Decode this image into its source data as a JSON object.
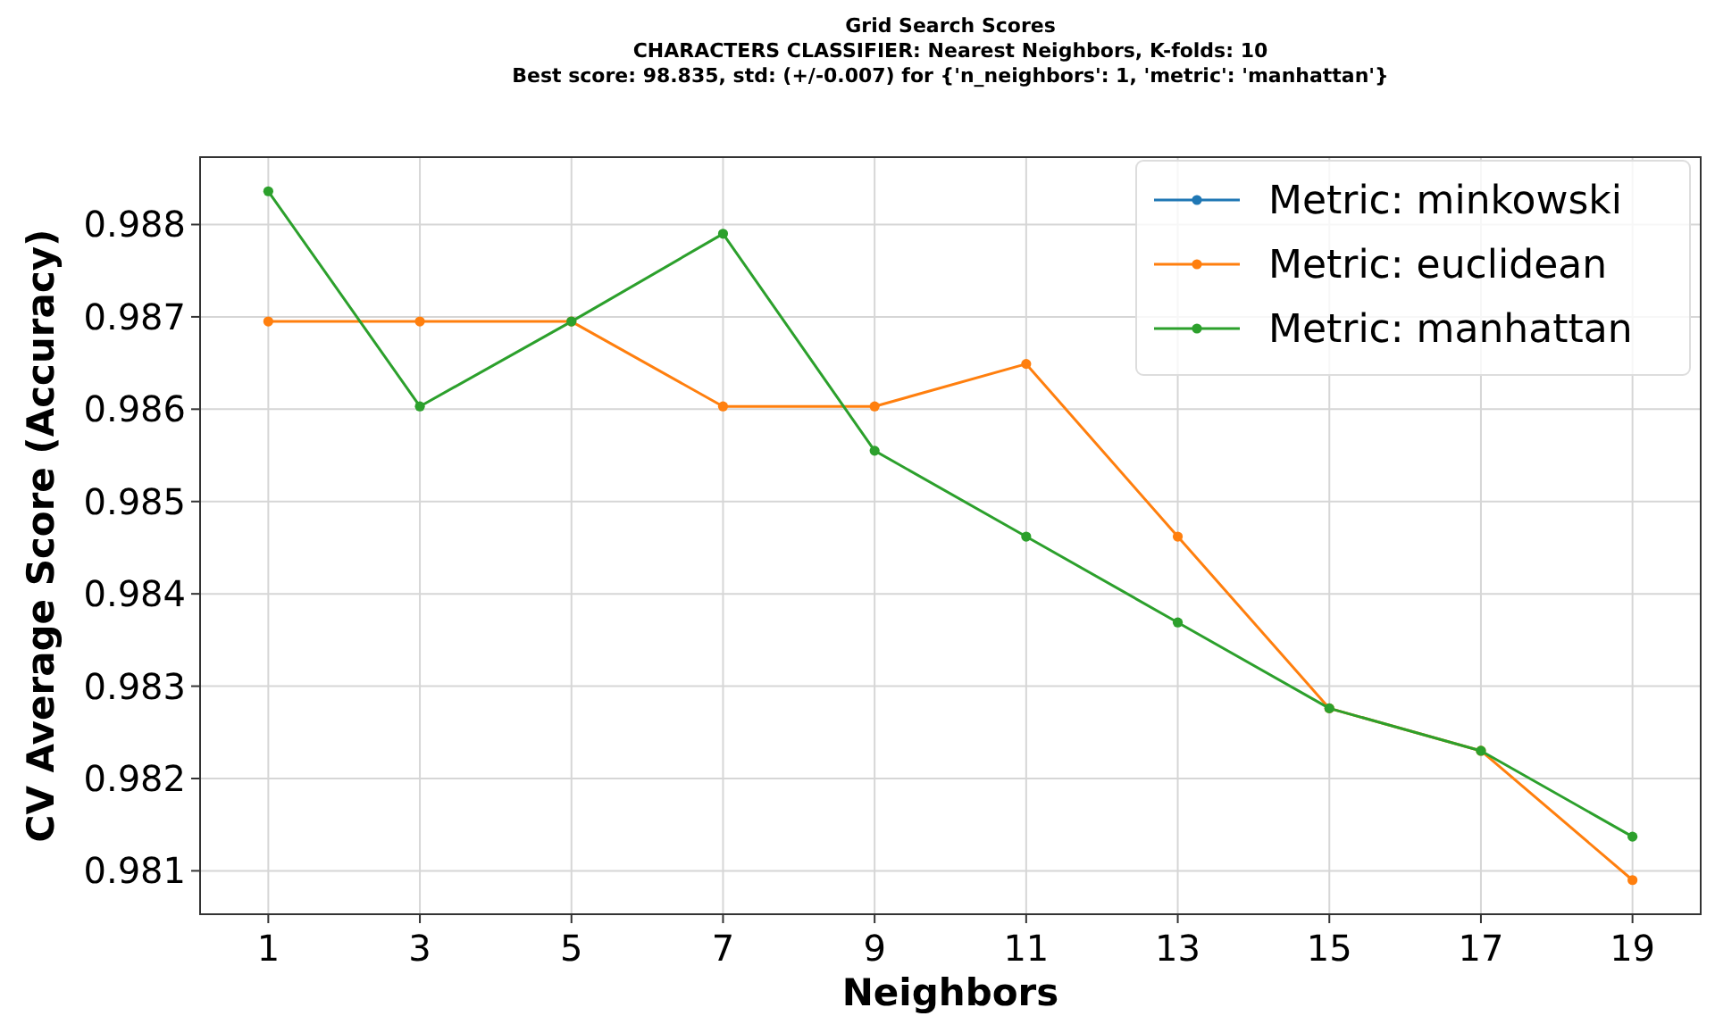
{
  "chart_data": {
    "type": "line",
    "title": "Grid Search Scores",
    "subtitle": "CHARACTERS CLASSIFIER: Nearest Neighbors, K-folds: 10\nBest score: 98.835, std: (+/-0.007) for {'n_neighbors': 1, 'metric': 'manhattan'}",
    "xlabel": "Neighbors",
    "ylabel": "CV Average Score (Accuracy)",
    "x": [
      1,
      3,
      5,
      7,
      9,
      11,
      13,
      15,
      17,
      19
    ],
    "series": [
      {
        "name": "Metric: minkowski",
        "color": "#1f77b4",
        "values": [
          null,
          null,
          null,
          null,
          null,
          null,
          null,
          null,
          null,
          null
        ]
      },
      {
        "name": "Metric: euclidean",
        "color": "#ff7f0e",
        "values": [
          0.98695,
          0.98695,
          0.98695,
          0.98603,
          0.98603,
          0.98649,
          0.98462,
          0.98276,
          0.9823,
          0.9809
        ]
      },
      {
        "name": "Metric: manhattan",
        "color": "#2ca02c",
        "values": [
          0.98836,
          0.98603,
          0.98695,
          0.9879,
          0.98555,
          0.98462,
          0.98369,
          0.98276,
          0.9823,
          0.98137
        ]
      }
    ],
    "xlim": [
      0.1,
      19.9
    ],
    "xticks": [
      1,
      3,
      5,
      7,
      9,
      11,
      13,
      15,
      17,
      19
    ],
    "ylim": [
      0.98053,
      0.98873
    ],
    "yticks": [
      0.981,
      0.982,
      0.983,
      0.984,
      0.985,
      0.986,
      0.987,
      0.988
    ],
    "grid": true,
    "legend": "top right",
    "marker": "circle",
    "line_style": "solid"
  }
}
